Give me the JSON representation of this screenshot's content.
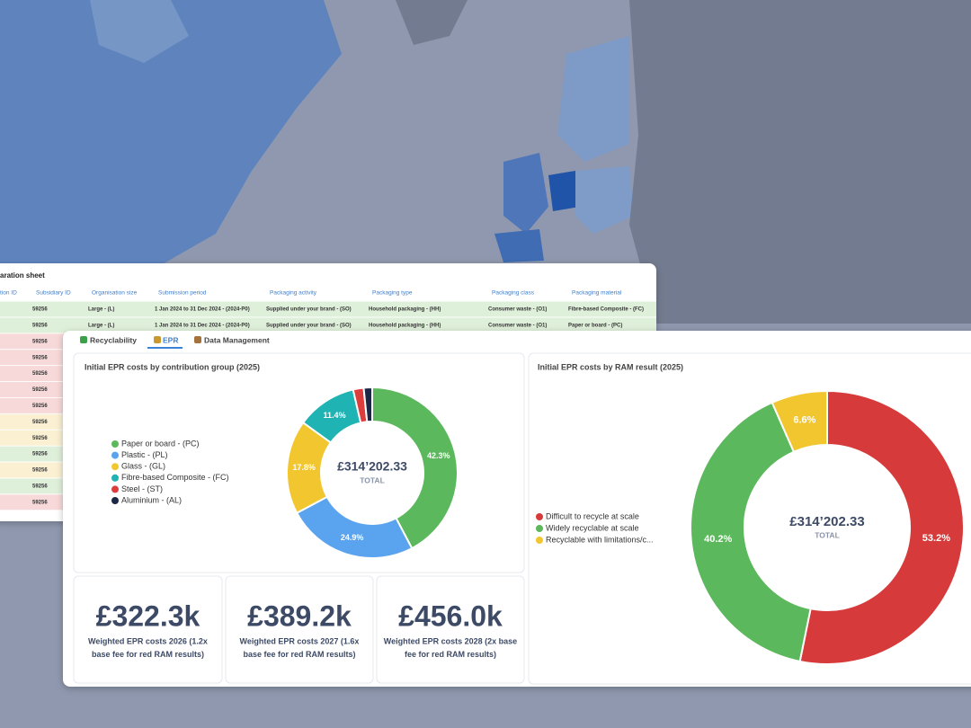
{
  "sheet": {
    "title": "aration sheet",
    "columns": [
      "tion ID",
      "Subsidiary ID",
      "Organisation size",
      "Submission period",
      "Packaging activity",
      "Packaging type",
      "Packaging class",
      "Packaging material"
    ],
    "rows": [
      {
        "color": "#dff0da",
        "cells": [
          "59256",
          "Large - (L)",
          "1 Jan 2024 to 31 Dec 2024 - (2024-P0)",
          "Supplied under your brand - (SO)",
          "Household packaging - (HH)",
          "Consumer waste - (O1)",
          "Fibre-based Composite - (FC)"
        ]
      },
      {
        "color": "#dff0da",
        "cells": [
          "59256",
          "Large - (L)",
          "1 Jan 2024 to 31 Dec 2024 - (2024-P0)",
          "Supplied under your brand - (SO)",
          "Household packaging - (HH)",
          "Consumer waste - (O1)",
          "Paper or board - (PC)"
        ]
      },
      {
        "color": "#f8d9d9",
        "cells": [
          "59256"
        ]
      },
      {
        "color": "#f8d9d9",
        "cells": [
          "59256"
        ]
      },
      {
        "color": "#f8d9d9",
        "cells": [
          "59256"
        ]
      },
      {
        "color": "#f8d9d9",
        "cells": [
          "59256"
        ]
      },
      {
        "color": "#f8d9d9",
        "cells": [
          "59256"
        ]
      },
      {
        "color": "#fbf0d2",
        "cells": [
          "59256"
        ]
      },
      {
        "color": "#fbf0d2",
        "cells": [
          "59256"
        ]
      },
      {
        "color": "#dff0da",
        "cells": [
          "59256"
        ]
      },
      {
        "color": "#fbf0d2",
        "cells": [
          "59256"
        ]
      },
      {
        "color": "#dff0da",
        "cells": [
          "59256"
        ]
      },
      {
        "color": "#f8d9d9",
        "cells": [
          "59256"
        ]
      }
    ]
  },
  "tabs": [
    "Recyclability",
    "EPR",
    "Data Management"
  ],
  "chart_data": [
    {
      "type": "pie",
      "title": "Initial EPR costs by contribution group (2025)",
      "center_value": "£314’202.33",
      "center_label": "TOTAL",
      "categories": [
        "Paper or board - (PC)",
        "Plastic - (PL)",
        "Glass - (GL)",
        "Fibre-based Composite - (FC)",
        "Steel - (ST)",
        "Aluminium - (AL)"
      ],
      "colors": [
        "#5cb85c",
        "#5aa3ee",
        "#f2c62f",
        "#1fb3b3",
        "#dc3c3c",
        "#1d2847"
      ],
      "values": [
        42.3,
        24.9,
        17.8,
        11.4,
        2.0,
        1.6
      ],
      "value_labels": [
        "42.3%",
        "24.9%",
        "17.8%",
        "11.4%",
        null,
        null
      ]
    },
    {
      "type": "pie",
      "title": "Initial EPR costs by RAM result (2025)",
      "center_value": "£314’202.33",
      "center_label": "TOTAL",
      "categories": [
        "Difficult to recycle at scale",
        "Widely recyclable at scale",
        "Recyclable with limitations/c..."
      ],
      "colors": [
        "#d63a3a",
        "#5cb85c",
        "#f2c62f"
      ],
      "values": [
        53.2,
        40.2,
        6.6
      ],
      "value_labels": [
        "53.2%",
        "40.2%",
        "6.6%"
      ]
    }
  ],
  "kpis": [
    {
      "value": "£322.3k",
      "lines": [
        "Weighted EPR costs 2026 (1.2x",
        "base fee for red RAM results)"
      ]
    },
    {
      "value": "£389.2k",
      "lines": [
        "Weighted EPR costs 2027 (1.6x",
        "base fee for red RAM results)"
      ]
    },
    {
      "value": "£456.0k",
      "lines": [
        "Weighted EPR costs 2028 (2x base",
        "fee for red RAM results)"
      ]
    }
  ]
}
